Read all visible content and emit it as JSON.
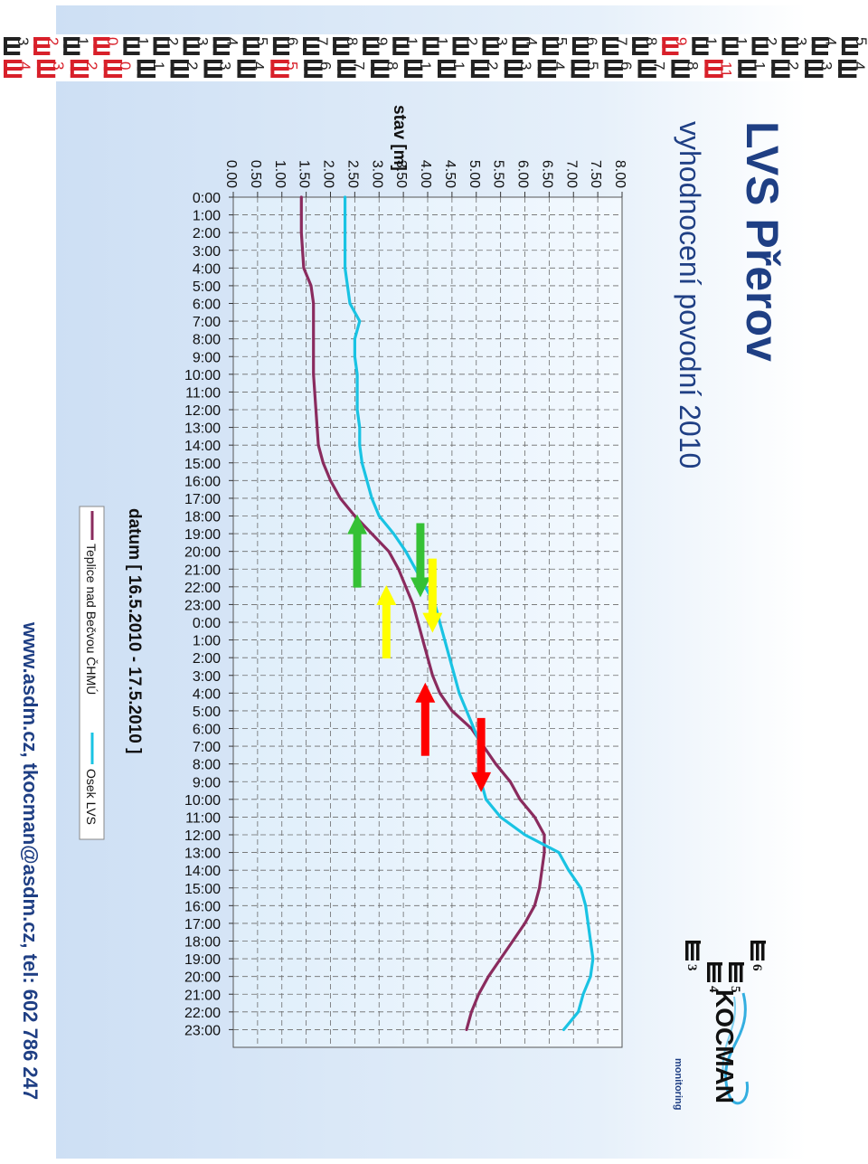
{
  "header": {
    "title": "LVS Přerov",
    "subtitle": "vyhodnocení povodní 2010"
  },
  "logo": {
    "brand": "KOCMAN",
    "tagline": "monitoring",
    "digits": [
      "3",
      "4",
      "5",
      "6"
    ]
  },
  "footer": {
    "contact": "www.asdm.cz, tkocman@asdm.cz, tel: 602 786 247"
  },
  "ruler": {
    "top_digits": [
      "3",
      "2",
      "1",
      "0",
      "1",
      "2",
      "3",
      "4",
      "5",
      "6",
      "7",
      "8",
      "9",
      "1",
      "1",
      "2",
      "3",
      "4",
      "5",
      "6",
      "7",
      "8",
      "9",
      "1",
      "1",
      "2",
      "3",
      "4",
      "5"
    ],
    "bottom_digits": [
      "4",
      "3",
      "2",
      "0",
      "1",
      "2",
      "3",
      "4",
      "5",
      "6",
      "7",
      "8",
      "1",
      "1",
      "2",
      "3",
      "4",
      "5",
      "6",
      "7",
      "8",
      "11",
      "1",
      "2",
      "3",
      "4"
    ]
  },
  "colors": {
    "background_left": "#cfe0f4",
    "background_right": "#ffffff",
    "teplice": "#8a2b5e",
    "osek": "#19c3e3",
    "arrow_green": "#35c135",
    "arrow_yellow": "#ffff00",
    "arrow_red": "#ff0000",
    "title": "#1f3f84"
  },
  "chart_data": {
    "type": "line",
    "ylabel": "stav [m]",
    "xlabel": "datum  [ 16.5.2010 - 17.5.2010 ]",
    "ylim": [
      0,
      8
    ],
    "yticks": [
      "0.00",
      "0.50",
      "1.00",
      "1.50",
      "2.00",
      "2.50",
      "3.00",
      "3.50",
      "4.00",
      "4.50",
      "5.00",
      "5.50",
      "6.00",
      "6.50",
      "7.00",
      "7.50",
      "8.00"
    ],
    "x_ticks": [
      "0:00",
      "1:00",
      "2:00",
      "3:00",
      "4:00",
      "5:00",
      "6:00",
      "7:00",
      "8:00",
      "9:00",
      "10:00",
      "11:00",
      "12:00",
      "13:00",
      "14:00",
      "15:00",
      "16:00",
      "17:00",
      "18:00",
      "19:00",
      "20:00",
      "21:00",
      "22:00",
      "23:00",
      "0:00",
      "1:00",
      "2:00",
      "3:00",
      "4:00",
      "5:00",
      "6:00",
      "7:00",
      "8:00",
      "9:00",
      "10:00",
      "11:00",
      "12:00",
      "13:00",
      "14:00",
      "15:00",
      "16:00",
      "17:00",
      "18:00",
      "19:00",
      "20:00",
      "21:00",
      "22:00",
      "23:00"
    ],
    "grid": true,
    "legend_position": "bottom",
    "series": [
      {
        "name": "Teplice nad Bečvou ČHMÚ",
        "x": [
          0,
          2,
          4,
          5,
          6,
          7,
          8,
          10,
          12,
          14,
          15,
          16,
          17,
          18,
          19,
          20,
          21,
          22,
          23,
          24,
          25,
          26,
          27,
          28,
          29,
          30,
          31,
          32,
          33,
          34,
          35,
          36,
          37,
          38,
          39,
          40,
          41,
          42,
          43,
          44,
          45,
          46,
          47
        ],
        "values": [
          1.4,
          1.4,
          1.45,
          1.6,
          1.65,
          1.65,
          1.65,
          1.65,
          1.7,
          1.75,
          1.85,
          2.0,
          2.2,
          2.5,
          2.85,
          3.2,
          3.4,
          3.55,
          3.7,
          3.8,
          3.9,
          4.0,
          4.1,
          4.25,
          4.5,
          4.9,
          5.15,
          5.4,
          5.7,
          5.9,
          6.2,
          6.4,
          6.4,
          6.35,
          6.3,
          6.2,
          6.0,
          5.75,
          5.5,
          5.25,
          5.05,
          4.9,
          4.8
        ]
      },
      {
        "name": "Osek LVS",
        "x": [
          0,
          1,
          2,
          3,
          4,
          5,
          6,
          7,
          8,
          9,
          10,
          11,
          12,
          13,
          14,
          15,
          16,
          17,
          18,
          19,
          20,
          21,
          22,
          23,
          24,
          25,
          26,
          27,
          28,
          29,
          30,
          31,
          32,
          33,
          34,
          35,
          36,
          37,
          38,
          39,
          40,
          41,
          42,
          43,
          44,
          45,
          46,
          47
        ],
        "values": [
          2.3,
          2.3,
          2.3,
          2.3,
          2.3,
          2.35,
          2.4,
          2.6,
          2.5,
          2.5,
          2.55,
          2.55,
          2.55,
          2.6,
          2.6,
          2.65,
          2.75,
          2.85,
          3.0,
          3.3,
          3.55,
          3.75,
          3.95,
          4.15,
          4.25,
          4.35,
          4.45,
          4.55,
          4.65,
          4.8,
          4.95,
          5.1,
          5.15,
          5.1,
          5.2,
          5.5,
          6.0,
          6.7,
          6.9,
          7.15,
          7.25,
          7.3,
          7.35,
          7.4,
          7.35,
          7.2,
          7.1,
          6.8
        ]
      }
    ]
  },
  "arrows": [
    {
      "color": "green",
      "direction": "up",
      "hour": 20,
      "level": 2.55
    },
    {
      "color": "green",
      "direction": "down",
      "hour": 20.5,
      "level": 3.85
    },
    {
      "color": "yellow",
      "direction": "down",
      "hour": 22.5,
      "level": 4.1
    },
    {
      "color": "yellow",
      "direction": "up",
      "hour": 24,
      "level": 3.15
    },
    {
      "color": "red",
      "direction": "up",
      "hour": 29.5,
      "level": 3.95
    },
    {
      "color": "red",
      "direction": "down",
      "hour": 31.5,
      "level": 5.1
    }
  ]
}
